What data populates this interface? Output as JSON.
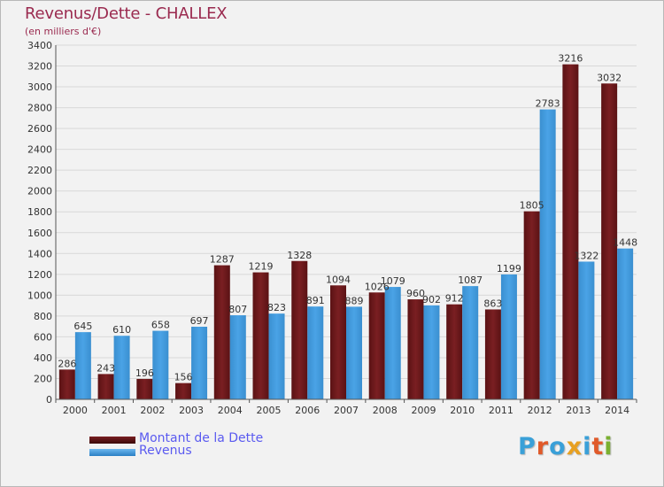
{
  "title": "Revenus/Dette - CHALLEX",
  "subtitle": "(en milliers d'€)",
  "logo": {
    "letters": [
      "P",
      "r",
      "o",
      "x",
      "i",
      "t",
      "i"
    ],
    "colors": [
      "#3aa0d8",
      "#e05a2a",
      "#3aa0d8",
      "#e8a020",
      "#3aa0d8",
      "#e05a2a",
      "#7ab030"
    ]
  },
  "legend": {
    "dette": "Montant de la Dette",
    "revenus": "Revenus"
  },
  "colors": {
    "dette": "#7a1f22",
    "revenus": "#4aa3e6",
    "grid": "#d8d8d8",
    "text": "#333333"
  },
  "chart_data": {
    "type": "bar",
    "categories": [
      "2000",
      "2001",
      "2002",
      "2003",
      "2004",
      "2005",
      "2006",
      "2007",
      "2008",
      "2009",
      "2010",
      "2011",
      "2012",
      "2013",
      "2014"
    ],
    "series": [
      {
        "name": "Montant de la Dette",
        "values": [
          286,
          243,
          196,
          156,
          1287,
          1219,
          1328,
          1094,
          1026,
          960,
          912,
          863,
          1805,
          3216,
          3032
        ]
      },
      {
        "name": "Revenus",
        "values": [
          645,
          610,
          658,
          697,
          807,
          823,
          891,
          889,
          1079,
          902,
          1087,
          1199,
          2783,
          1322,
          1448
        ]
      }
    ],
    "data_labels": {
      "dette": [
        "286",
        "243",
        "196",
        "156",
        "1287",
        "1219",
        "1328",
        "1094",
        "1026",
        "960",
        "912",
        "863",
        "1805",
        "3216",
        "3032"
      ],
      "revenus": [
        "645",
        "610",
        "658",
        "697",
        "807",
        "823",
        "891",
        "889",
        "1079",
        "902",
        "1087",
        "1199",
        "2783",
        "1322",
        "1448"
      ]
    },
    "ylim": [
      0,
      3400
    ],
    "yticks": [
      0,
      200,
      400,
      600,
      800,
      1000,
      1200,
      1400,
      1600,
      1800,
      2000,
      2200,
      2400,
      2600,
      2800,
      3000,
      3200,
      3400
    ],
    "grid": true,
    "legend_position": "bottom-left"
  }
}
